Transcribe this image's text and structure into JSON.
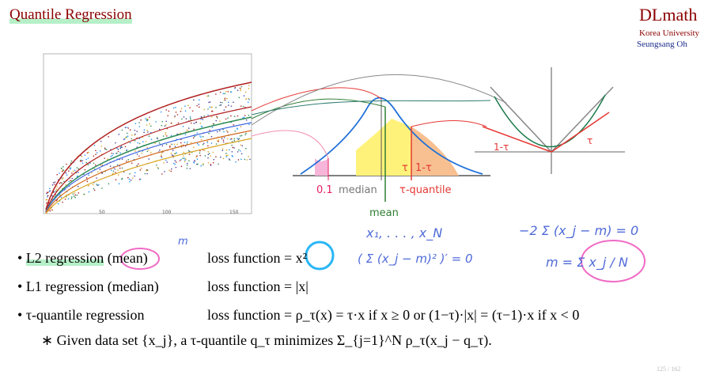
{
  "header": {
    "title": "Quantile Regression",
    "logo": "DLmath",
    "affiliation": "Korea University",
    "author": "Seungsang Oh"
  },
  "scatter": {
    "xticks": [
      "50",
      "100",
      "150"
    ]
  },
  "diagram": {
    "left_tail": "0.1",
    "median": "median",
    "mean": "mean",
    "quantile": "τ-quantile",
    "tau": "τ",
    "one_minus_tau": "1-τ",
    "loss_left": "1-τ",
    "loss_right": "τ"
  },
  "notes": {
    "superscript_m": "m",
    "data": "x₁, . . . , x_N",
    "derivative": "( Σ (x_j − m)² )′ = 0",
    "sum_eq": "−2 Σ (x_j − m) = 0",
    "mean_formula": "m = Σ x_j / N"
  },
  "bullets": [
    {
      "label": "L2 regression",
      "paren": "(mean)",
      "loss": "loss function = x²"
    },
    {
      "label": "L1 regression",
      "paren": "(median)",
      "loss": "loss function = |x|"
    },
    {
      "label": "τ-quantile regression",
      "loss": "loss function = ρ_τ(x) = τ·x  if x ≥ 0  or  (1−τ)·|x| = (τ−1)·x  if x < 0"
    }
  ],
  "footnote": "∗ Given data set {x_j},  a τ-quantile q_τ minimizes Σ_{j=1}^N ρ_τ(x_j − q_τ).",
  "page": "125 / 162"
}
